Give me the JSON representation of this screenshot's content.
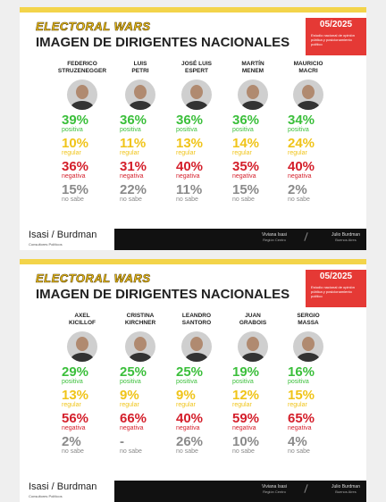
{
  "panels": [
    {
      "brand": "ELECTORAL WARS",
      "title": "IMAGEN DE DIRIGENTES NACIONALES",
      "date": "05/2025",
      "study": "Estudio nacional de opinión pública y posicionamiento político",
      "row_labels": [
        "positiva",
        "regular",
        "negativa",
        "no sabe"
      ],
      "people": [
        {
          "name": [
            "FEDERICO",
            "STRUZENEGGER"
          ],
          "values": [
            "39%",
            "10%",
            "36%",
            "15%"
          ]
        },
        {
          "name": [
            "LUIS",
            "PETRI"
          ],
          "values": [
            "36%",
            "11%",
            "31%",
            "22%"
          ]
        },
        {
          "name": [
            "JOSÉ LUIS",
            "ESPERT"
          ],
          "values": [
            "36%",
            "13%",
            "40%",
            "11%"
          ]
        },
        {
          "name": [
            "MARTÍN",
            "MENEM"
          ],
          "values": [
            "36%",
            "14%",
            "35%",
            "15%"
          ]
        },
        {
          "name": [
            "MAURICIO",
            "MACRI"
          ],
          "values": [
            "34%",
            "24%",
            "40%",
            "2%"
          ]
        }
      ],
      "footer": {
        "logo": "Isasi / Burdman",
        "logo_sub": "Consultores Políticos",
        "contacts": [
          {
            "name": "Viviana Isasi",
            "place": "Región Centro"
          },
          {
            "name": "Julio Burdman",
            "place": "Buenos Aires"
          }
        ]
      }
    },
    {
      "brand": "ELECTORAL WARS",
      "title": "IMAGEN DE DIRIGENTES NACIONALES",
      "date": "05/2025",
      "study": "Estudio nacional de opinión pública y posicionamiento político",
      "row_labels": [
        "positiva",
        "regular",
        "negativa",
        "no sabe"
      ],
      "people": [
        {
          "name": [
            "AXEL",
            "KICILLOF"
          ],
          "values": [
            "29%",
            "13%",
            "56%",
            "2%"
          ]
        },
        {
          "name": [
            "CRISTINA",
            "KIRCHNER"
          ],
          "values": [
            "25%",
            "9%",
            "66%",
            "-"
          ]
        },
        {
          "name": [
            "LEANDRO",
            "SANTORO"
          ],
          "values": [
            "25%",
            "9%",
            "40%",
            "26%"
          ]
        },
        {
          "name": [
            "JUAN",
            "GRABOIS"
          ],
          "values": [
            "19%",
            "12%",
            "59%",
            "10%"
          ]
        },
        {
          "name": [
            "SERGIO",
            "MASSA"
          ],
          "values": [
            "16%",
            "15%",
            "65%",
            "4%"
          ]
        }
      ],
      "footer": {
        "logo": "Isasi / Burdman",
        "logo_sub": "Consultores Políticos",
        "contacts": [
          {
            "name": "Viviana Isasi",
            "place": "Región Centro"
          },
          {
            "name": "Julio Burdman",
            "place": "Buenos Aires"
          }
        ]
      }
    }
  ]
}
